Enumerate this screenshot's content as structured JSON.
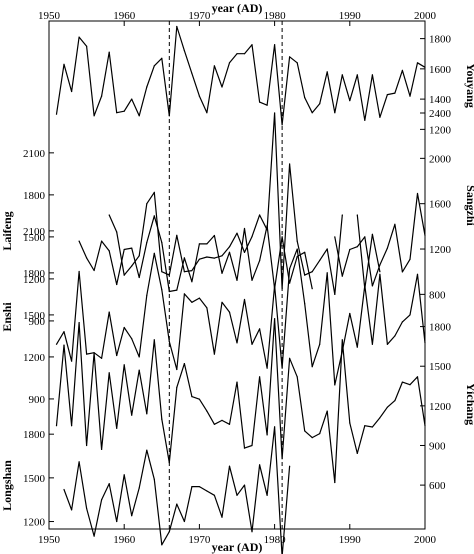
{
  "chart_data": {
    "type": "line",
    "xlabel": "year (AD)",
    "xlim": [
      1950,
      2000
    ],
    "x_ticks": [
      1950,
      1960,
      1970,
      1980,
      1990,
      2000
    ],
    "reference_lines": [
      1966,
      1981
    ],
    "grid": false,
    "series": [
      {
        "name": "Youyang",
        "axis_side": "right",
        "yticks": [
          1200,
          1400,
          1600,
          1800
        ],
        "ylim": [
          1090,
          1890
        ],
        "points": [
          [
            1951,
            1300
          ],
          [
            1952,
            1630
          ],
          [
            1953,
            1450
          ],
          [
            1954,
            1810
          ],
          [
            1955,
            1750
          ],
          [
            1956,
            1290
          ],
          [
            1957,
            1420
          ],
          [
            1958,
            1710
          ],
          [
            1959,
            1310
          ],
          [
            1960,
            1320
          ],
          [
            1961,
            1400
          ],
          [
            1962,
            1290
          ],
          [
            1963,
            1480
          ],
          [
            1964,
            1620
          ],
          [
            1965,
            1670
          ],
          [
            1966,
            1290
          ],
          [
            1967,
            1880
          ],
          [
            1968,
            1720
          ],
          [
            1969,
            1570
          ],
          [
            1970,
            1420
          ],
          [
            1971,
            1310
          ],
          [
            1972,
            1620
          ],
          [
            1973,
            1480
          ],
          [
            1974,
            1640
          ],
          [
            1975,
            1700
          ],
          [
            1976,
            1700
          ],
          [
            1977,
            1760
          ],
          [
            1978,
            1380
          ],
          [
            1979,
            1360
          ],
          [
            1980,
            1760
          ],
          [
            1981,
            1230
          ],
          [
            1982,
            1680
          ],
          [
            1983,
            1640
          ],
          [
            1984,
            1410
          ],
          [
            1985,
            1310
          ],
          [
            1986,
            1370
          ],
          [
            1987,
            1580
          ],
          [
            1988,
            1310
          ],
          [
            1989,
            1560
          ],
          [
            1990,
            1390
          ],
          [
            1991,
            1560
          ],
          [
            1992,
            1260
          ],
          [
            1993,
            1560
          ],
          [
            1994,
            1280
          ],
          [
            1995,
            1430
          ],
          [
            1996,
            1440
          ],
          [
            1997,
            1590
          ],
          [
            1998,
            1420
          ],
          [
            1999,
            1640
          ],
          [
            2000,
            1610
          ]
        ]
      },
      {
        "name": "Laifeng",
        "axis_side": "left",
        "yticks": [
          900,
          1200,
          1500,
          1800,
          2100
        ],
        "ylim": [
          828,
          2256
        ],
        "points": [
          [
            1954,
            1470
          ],
          [
            1955,
            1350
          ],
          [
            1956,
            1260
          ],
          [
            1957,
            1470
          ],
          [
            1958,
            1400
          ],
          [
            1959,
            1160
          ],
          [
            1960,
            1410
          ],
          [
            1961,
            1420
          ],
          [
            1962,
            1210
          ],
          [
            1963,
            1460
          ],
          [
            1964,
            1650
          ],
          [
            1965,
            1460
          ],
          [
            1966,
            1110
          ],
          [
            1967,
            1120
          ],
          [
            1968,
            1350
          ],
          [
            1969,
            1180
          ],
          [
            1970,
            1450
          ],
          [
            1971,
            1450
          ],
          [
            1972,
            1510
          ],
          [
            1973,
            1240
          ],
          [
            1974,
            1390
          ],
          [
            1975,
            1190
          ],
          [
            1976,
            1560
          ],
          [
            1977,
            1190
          ],
          [
            1978,
            1330
          ],
          [
            1979,
            1580
          ],
          [
            1980,
            1130
          ],
          [
            1981,
            1500
          ],
          [
            1982,
            1170
          ],
          [
            1983,
            1360
          ],
          [
            1984,
            1390
          ],
          [
            1985,
            1130
          ],
          null,
          [
            1988,
            1500
          ],
          [
            1989,
            1220
          ],
          [
            1990,
            1410
          ],
          [
            1991,
            1430
          ],
          [
            1992,
            1500
          ],
          [
            1993,
            1150
          ],
          [
            1994,
            1300
          ],
          [
            1995,
            1420
          ],
          [
            1996,
            1590
          ],
          [
            1997,
            1250
          ],
          [
            1998,
            1340
          ],
          [
            1999,
            1810
          ],
          [
            2000,
            1510
          ]
        ]
      },
      {
        "name": "Sangzhi",
        "axis_side": "right",
        "yticks": [
          800,
          1200,
          1600,
          2000,
          2400
        ],
        "ylim": [
          618,
          2550
        ],
        "points": [
          [
            1958,
            1500
          ],
          [
            1959,
            1350
          ],
          [
            1960,
            970
          ],
          [
            1961,
            1050
          ],
          [
            1962,
            1140
          ],
          [
            1963,
            1600
          ],
          [
            1964,
            1700
          ],
          [
            1965,
            1000
          ],
          [
            1966,
            970
          ],
          [
            1967,
            1320
          ],
          [
            1968,
            1000
          ],
          [
            1969,
            1010
          ],
          [
            1970,
            1110
          ],
          [
            1971,
            1130
          ],
          [
            1972,
            1120
          ],
          [
            1973,
            1140
          ],
          [
            1974,
            1220
          ],
          [
            1975,
            1340
          ],
          [
            1976,
            1170
          ],
          [
            1977,
            1310
          ],
          [
            1978,
            1500
          ],
          [
            1979,
            1370
          ],
          [
            1980,
            2400
          ],
          [
            1981,
            850
          ],
          [
            1982,
            1950
          ],
          [
            1983,
            1270
          ],
          [
            1984,
            970
          ],
          [
            1985,
            1000
          ],
          [
            1986,
            1100
          ],
          [
            1987,
            1200
          ],
          [
            1988,
            800
          ],
          [
            1989,
            1500
          ],
          null,
          [
            1991,
            1500
          ],
          [
            1992,
            850
          ],
          [
            1993,
            1330
          ],
          [
            1994,
            1000
          ]
        ]
      },
      {
        "name": "Enshi",
        "axis_side": "left",
        "yticks": [
          900,
          1200,
          1500,
          1800,
          2100
        ],
        "ylim": [
          771,
          2199
        ],
        "points": [
          [
            1951,
            1290
          ],
          [
            1952,
            1380
          ],
          [
            1953,
            1170
          ],
          [
            1954,
            1810
          ],
          [
            1955,
            1220
          ],
          [
            1956,
            1230
          ],
          [
            1957,
            1190
          ],
          [
            1958,
            1520
          ],
          [
            1959,
            1210
          ],
          [
            1960,
            1410
          ],
          [
            1961,
            1330
          ],
          [
            1962,
            1200
          ],
          [
            1963,
            1640
          ],
          [
            1964,
            1940
          ],
          [
            1965,
            1680
          ],
          [
            1966,
            1310
          ],
          [
            1967,
            1110
          ],
          [
            1968,
            1650
          ],
          [
            1969,
            1590
          ],
          [
            1970,
            1620
          ],
          [
            1971,
            1550
          ],
          [
            1972,
            1220
          ],
          [
            1973,
            1590
          ],
          [
            1974,
            1520
          ],
          [
            1975,
            1300
          ],
          [
            1976,
            1610
          ],
          [
            1977,
            1290
          ],
          [
            1978,
            1400
          ],
          [
            1979,
            1120
          ],
          [
            1980,
            1710
          ],
          [
            1981,
            1120
          ],
          [
            1982,
            1830
          ],
          [
            1983,
            1970
          ],
          [
            1984,
            1580
          ],
          [
            1985,
            1130
          ],
          [
            1986,
            1290
          ],
          [
            1987,
            1800
          ],
          [
            1988,
            1000
          ],
          [
            1989,
            1240
          ],
          [
            1990,
            1510
          ],
          [
            1991,
            1270
          ],
          [
            1992,
            1710
          ],
          [
            1993,
            1290
          ],
          [
            1994,
            1790
          ],
          [
            1995,
            1290
          ],
          [
            1996,
            1350
          ],
          [
            1997,
            1450
          ],
          [
            1998,
            1500
          ],
          [
            1999,
            1790
          ],
          [
            2000,
            1300
          ]
        ]
      },
      {
        "name": "Yichang",
        "axis_side": "right",
        "yticks": [
          600,
          900,
          1200,
          1500,
          1800
        ],
        "ylim": [
          404,
          2024
        ],
        "points": [
          [
            1951,
            1050
          ],
          [
            1952,
            1660
          ],
          [
            1953,
            1050
          ],
          [
            1954,
            1830
          ],
          [
            1955,
            900
          ],
          [
            1956,
            1600
          ],
          [
            1957,
            870
          ],
          [
            1958,
            1450
          ],
          [
            1959,
            1030
          ],
          [
            1960,
            1510
          ],
          [
            1961,
            1130
          ],
          [
            1962,
            1470
          ],
          [
            1963,
            1140
          ],
          [
            1964,
            1700
          ],
          [
            1965,
            1100
          ],
          [
            1966,
            770
          ],
          [
            1967,
            1340
          ],
          [
            1968,
            1520
          ],
          [
            1969,
            1270
          ],
          [
            1970,
            1250
          ],
          [
            1971,
            1160
          ],
          [
            1972,
            1060
          ],
          [
            1973,
            1090
          ],
          [
            1974,
            1060
          ],
          [
            1975,
            1380
          ],
          [
            1976,
            880
          ],
          [
            1977,
            900
          ],
          [
            1978,
            1420
          ],
          [
            1979,
            980
          ],
          [
            1980,
            1860
          ],
          [
            1981,
            800
          ],
          [
            1982,
            1560
          ],
          [
            1983,
            1420
          ],
          [
            1984,
            1010
          ],
          [
            1985,
            960
          ],
          [
            1986,
            990
          ],
          [
            1987,
            1160
          ],
          [
            1988,
            620
          ],
          [
            1989,
            1700
          ],
          [
            1990,
            1070
          ],
          [
            1991,
            840
          ],
          [
            1992,
            1050
          ],
          [
            1993,
            1040
          ],
          [
            1994,
            1110
          ],
          [
            1995,
            1190
          ],
          [
            1996,
            1240
          ],
          [
            1997,
            1380
          ],
          [
            1998,
            1360
          ],
          [
            1999,
            1420
          ],
          [
            2000,
            1050
          ]
        ]
      },
      {
        "name": "Longshan",
        "axis_side": "left",
        "yticks": [
          900,
          1200,
          1500,
          1800
        ],
        "ylim": [
          771,
          2124
        ],
        "points": [
          [
            1952,
            1420
          ],
          [
            1953,
            1280
          ],
          [
            1954,
            1610
          ],
          [
            1955,
            1290
          ],
          [
            1956,
            1100
          ],
          [
            1957,
            1350
          ],
          [
            1958,
            1460
          ],
          [
            1959,
            1200
          ],
          [
            1960,
            1520
          ],
          [
            1961,
            1240
          ],
          [
            1962,
            1430
          ],
          [
            1963,
            1690
          ],
          [
            1964,
            1490
          ],
          [
            1965,
            1040
          ],
          [
            1966,
            1130
          ],
          [
            1967,
            1320
          ],
          [
            1968,
            1200
          ],
          [
            1969,
            1440
          ],
          [
            1970,
            1440
          ],
          [
            1971,
            1410
          ],
          [
            1972,
            1380
          ],
          [
            1973,
            1230
          ],
          [
            1974,
            1580
          ],
          [
            1975,
            1380
          ],
          [
            1976,
            1450
          ],
          [
            1977,
            1130
          ],
          [
            1978,
            1590
          ],
          [
            1979,
            1380
          ],
          [
            1980,
            1850
          ],
          [
            1981,
            960
          ],
          [
            1982,
            1580
          ]
        ]
      }
    ]
  }
}
